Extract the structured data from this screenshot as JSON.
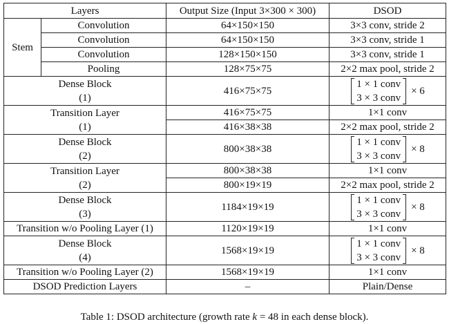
{
  "table": {
    "headers": [
      "Layers",
      "Output Size (Input 3×300 × 300)",
      "DSOD"
    ],
    "stem": {
      "label": "Stem",
      "rows": [
        {
          "layer": "Convolution",
          "size": "64×150×150",
          "dsod": "3×3 conv, stride 2"
        },
        {
          "layer": "Convolution",
          "size": "64×150×150",
          "dsod": "3×3 conv, stride 1"
        },
        {
          "layer": "Convolution",
          "size": "128×150×150",
          "dsod": "3×3 conv, stride 1"
        },
        {
          "layer": "Pooling",
          "size": "128×75×75",
          "dsod": "2×2 max pool, stride 2"
        }
      ]
    },
    "dense1": {
      "name": "Dense Block",
      "index": "(1)",
      "size": "416×75×75",
      "row1": "1 × 1 conv",
      "row2": "3 × 3 conv",
      "repeat": "× 6"
    },
    "trans1": {
      "name": "Transition Layer",
      "index": "(1)",
      "size_a": "416×75×75",
      "dsod_a": "1×1 conv",
      "size_b": "416×38×38",
      "dsod_b": "2×2 max pool, stride 2"
    },
    "dense2": {
      "name": "Dense Block",
      "index": "(2)",
      "size": "800×38×38",
      "row1": "1 × 1 conv",
      "row2": "3 × 3 conv",
      "repeat": "× 8"
    },
    "trans2": {
      "name": "Transition Layer",
      "index": "(2)",
      "size_a": "800×38×38",
      "dsod_a": "1×1 conv",
      "size_b": "800×19×19",
      "dsod_b": "2×2 max pool, stride 2"
    },
    "dense3": {
      "name": "Dense Block",
      "index": "(3)",
      "size": "1184×19×19",
      "row1": "1 × 1 conv",
      "row2": "3 × 3 conv",
      "repeat": "× 8"
    },
    "transnp1": {
      "layer": "Transition w/o Pooling Layer (1)",
      "size": "1120×19×19",
      "dsod": "1×1 conv"
    },
    "dense4": {
      "name": "Dense Block",
      "index": "(4)",
      "size": "1568×19×19",
      "row1": "1 × 1 conv",
      "row2": "3 × 3 conv",
      "repeat": "× 8"
    },
    "transnp2": {
      "layer": "Transition w/o Pooling Layer (2)",
      "size": "1568×19×19",
      "dsod": "1×1 conv"
    },
    "pred": {
      "layer": "DSOD Prediction Layers",
      "size": "–",
      "dsod": "Plain/Dense"
    }
  },
  "caption": {
    "prefix": "Table 1: DSOD architecture (growth rate ",
    "var": "k",
    "suffix": " = 48 in each dense block)."
  }
}
